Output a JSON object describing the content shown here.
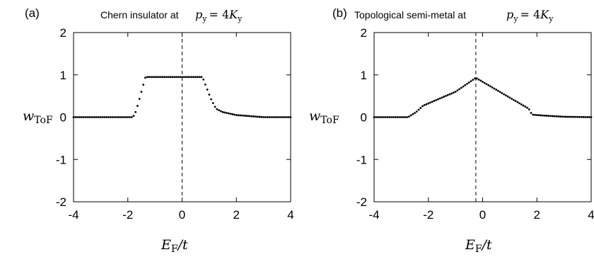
{
  "chart_data": [
    {
      "type": "scatter",
      "panel_label": "(a)",
      "title": "Chern insulator at",
      "title_math": {
        "var": "p",
        "sub": "y",
        "rhs": "= 4",
        "rhs_var": "K",
        "rhs_sub": "y"
      },
      "xlabel": {
        "var": "E",
        "sub": "F",
        "suffix": "/t"
      },
      "ylabel": {
        "var": "w",
        "sub": "ToF"
      },
      "xlim": [
        -4,
        4
      ],
      "ylim": [
        -2,
        2
      ],
      "xticks": [
        -4,
        -2,
        0,
        2,
        4
      ],
      "yticks": [
        -2,
        -1,
        0,
        1,
        2
      ],
      "xtick_labels": [
        "-4",
        "-2",
        "0",
        "2",
        "4"
      ],
      "ytick_labels": [
        "-2",
        "-1",
        "0",
        "1",
        "2"
      ],
      "vline_x": 0,
      "grid": false,
      "x_range": [
        -4,
        4
      ],
      "num_points": 113,
      "shape_keypoints": [
        [
          -4.0,
          0.0
        ],
        [
          -1.85,
          0.0
        ],
        [
          -1.75,
          0.05
        ],
        [
          -1.65,
          0.25
        ],
        [
          -1.35,
          0.95
        ],
        [
          0.75,
          0.95
        ],
        [
          1.05,
          0.45
        ],
        [
          1.25,
          0.2
        ],
        [
          1.5,
          0.12
        ],
        [
          2.0,
          0.05
        ],
        [
          2.6,
          0.02
        ],
        [
          3.0,
          0.0
        ],
        [
          4.0,
          0.0
        ]
      ]
    },
    {
      "type": "scatter",
      "panel_label": "(b)",
      "title": "Topological semi-metal at",
      "title_math": {
        "var": "p",
        "sub": "y",
        "rhs": "= 4",
        "rhs_var": "K",
        "rhs_sub": "y"
      },
      "xlabel": {
        "var": "E",
        "sub": "F",
        "suffix": "/t"
      },
      "ylabel": {
        "var": "w",
        "sub": "ToF"
      },
      "xlim": [
        -4,
        4
      ],
      "ylim": [
        -2,
        2
      ],
      "xticks": [
        -4,
        -2,
        0,
        2,
        4
      ],
      "yticks": [
        -2,
        -1,
        0,
        1,
        2
      ],
      "xtick_labels": [
        "-4",
        "-2",
        "0",
        "2",
        "4"
      ],
      "ytick_labels": [
        "-2",
        "-1",
        "0",
        "1",
        "2"
      ],
      "vline_x": -0.25,
      "grid": false,
      "x_range": [
        -4,
        4
      ],
      "num_points": 113,
      "shape_keypoints": [
        [
          -4.0,
          0.0
        ],
        [
          -2.75,
          0.0
        ],
        [
          -2.45,
          0.12
        ],
        [
          -2.2,
          0.27
        ],
        [
          -1.0,
          0.6
        ],
        [
          -0.25,
          0.93
        ],
        [
          1.7,
          0.2
        ],
        [
          1.82,
          0.06
        ],
        [
          2.2,
          0.04
        ],
        [
          3.0,
          0.01
        ],
        [
          4.0,
          0.0
        ]
      ]
    }
  ]
}
